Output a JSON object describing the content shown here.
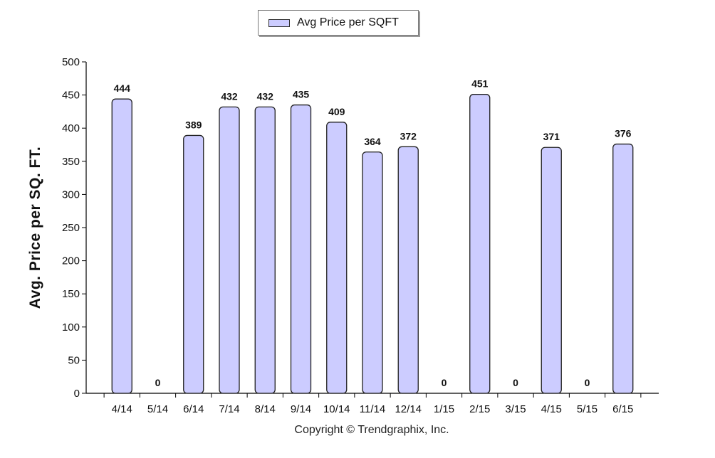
{
  "chart_data": {
    "type": "bar",
    "categories": [
      "4/14",
      "5/14",
      "6/14",
      "7/14",
      "8/14",
      "9/14",
      "10/14",
      "11/14",
      "12/14",
      "1/15",
      "2/15",
      "3/15",
      "4/15",
      "5/15",
      "6/15"
    ],
    "series": [
      {
        "name": "Avg Price per SQFT",
        "values": [
          444,
          0,
          389,
          432,
          432,
          435,
          409,
          364,
          372,
          0,
          451,
          0,
          371,
          0,
          376
        ]
      }
    ],
    "ylabel": "Avg. Price per SQ. FT.",
    "xlabel": "",
    "ylim": [
      0,
      500
    ],
    "yticks": [
      0,
      50,
      100,
      150,
      200,
      250,
      300,
      350,
      400,
      450,
      500
    ],
    "legend_position": "top-center",
    "grid": false,
    "bar_color": "#ccccff",
    "bar_edge_color": "#202020"
  },
  "footer": {
    "copyright": "Copyright © Trendgraphix, Inc."
  }
}
